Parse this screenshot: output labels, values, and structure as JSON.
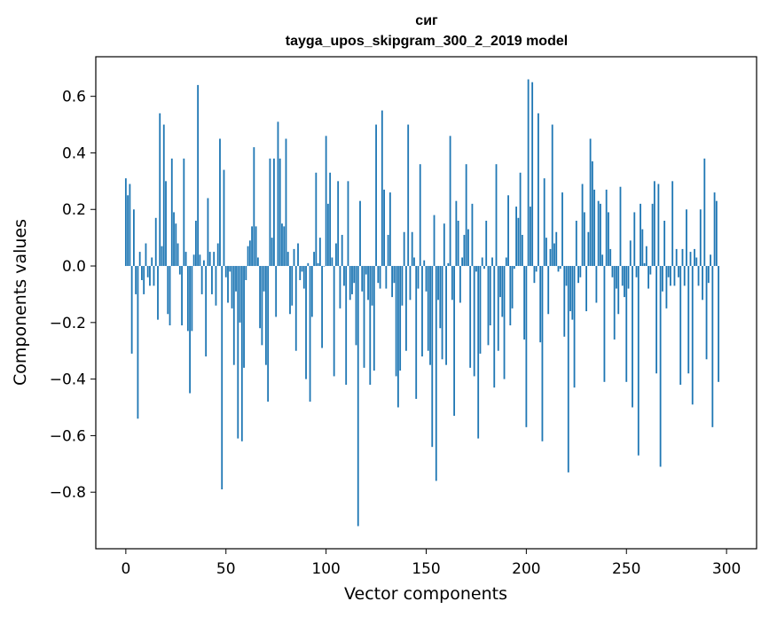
{
  "chart_data": {
    "type": "bar",
    "title_line1": "сиг",
    "title_line2": "tayga_upos_skipgram_300_2_2019 model",
    "xlabel": "Vector components",
    "ylabel": "Components values",
    "xlim": [
      -15,
      315
    ],
    "ylim": [
      -1.0,
      0.74
    ],
    "xticks": [
      0,
      50,
      100,
      150,
      200,
      250,
      300
    ],
    "yticks": [
      -0.8,
      -0.6,
      -0.4,
      -0.2,
      0.0,
      0.2,
      0.4,
      0.6
    ],
    "ytick_labels": [
      "−0.8",
      "−0.6",
      "−0.4",
      "−0.2",
      "0.0",
      "0.2",
      "0.4",
      "0.6"
    ],
    "bar_color": "#1f77b4",
    "values": [
      0.31,
      0.25,
      0.29,
      -0.31,
      0.2,
      -0.1,
      -0.54,
      0.05,
      -0.05,
      -0.1,
      0.08,
      -0.04,
      -0.07,
      0.03,
      -0.07,
      0.17,
      -0.19,
      0.54,
      0.07,
      0.5,
      0.3,
      -0.17,
      -0.21,
      0.38,
      0.19,
      0.15,
      0.08,
      -0.03,
      -0.21,
      0.38,
      0.05,
      -0.23,
      -0.45,
      -0.23,
      0.04,
      0.16,
      0.64,
      0.04,
      -0.1,
      0.02,
      -0.32,
      0.24,
      0.05,
      -0.1,
      0.05,
      -0.14,
      0.08,
      0.45,
      -0.79,
      0.34,
      -0.04,
      -0.13,
      -0.02,
      -0.15,
      -0.35,
      -0.09,
      -0.61,
      -0.2,
      -0.62,
      -0.36,
      -0.05,
      0.07,
      0.09,
      0.14,
      0.42,
      0.14,
      0.03,
      -0.22,
      -0.28,
      -0.09,
      -0.35,
      -0.48,
      0.38,
      0.1,
      0.38,
      -0.18,
      0.51,
      0.38,
      0.15,
      0.14,
      0.45,
      0.05,
      -0.17,
      -0.14,
      0.06,
      -0.3,
      0.08,
      -0.05,
      -0.02,
      -0.08,
      -0.4,
      0.01,
      -0.48,
      -0.18,
      0.05,
      0.33,
      0.01,
      0.1,
      -0.29,
      0.0,
      0.46,
      0.22,
      0.33,
      0.03,
      -0.39,
      0.08,
      0.3,
      -0.15,
      0.11,
      -0.07,
      -0.42,
      0.3,
      -0.12,
      -0.1,
      -0.06,
      -0.28,
      -0.92,
      0.23,
      -0.09,
      -0.36,
      -0.03,
      -0.12,
      -0.42,
      -0.14,
      -0.37,
      0.5,
      -0.06,
      -0.08,
      0.55,
      0.27,
      -0.08,
      0.11,
      0.26,
      -0.11,
      -0.06,
      -0.39,
      -0.5,
      -0.37,
      -0.14,
      0.12,
      -0.3,
      0.5,
      -0.12,
      0.12,
      0.03,
      -0.47,
      -0.08,
      0.36,
      -0.32,
      0.02,
      -0.09,
      -0.3,
      -0.35,
      -0.64,
      0.18,
      -0.76,
      -0.12,
      -0.22,
      -0.33,
      0.15,
      -0.35,
      0.01,
      0.46,
      -0.12,
      -0.53,
      0.23,
      0.16,
      -0.13,
      0.03,
      0.11,
      0.36,
      0.13,
      -0.36,
      0.22,
      -0.39,
      -0.02,
      -0.61,
      -0.31,
      0.03,
      -0.01,
      0.16,
      -0.28,
      -0.21,
      0.03,
      -0.43,
      0.36,
      -0.3,
      -0.11,
      -0.18,
      -0.4,
      0.03,
      0.25,
      -0.21,
      -0.15,
      -0.01,
      0.21,
      0.17,
      0.33,
      0.11,
      -0.26,
      -0.57,
      0.66,
      0.21,
      0.65,
      -0.06,
      -0.02,
      0.54,
      -0.27,
      -0.62,
      0.31,
      0.1,
      -0.17,
      0.06,
      0.5,
      0.08,
      0.12,
      -0.02,
      -0.01,
      0.26,
      -0.25,
      -0.07,
      -0.73,
      -0.16,
      -0.19,
      -0.43,
      0.16,
      -0.06,
      -0.04,
      0.29,
      0.19,
      -0.16,
      0.12,
      0.45,
      0.37,
      0.27,
      -0.13,
      0.23,
      0.22,
      0.04,
      -0.41,
      0.27,
      0.19,
      0.06,
      -0.04,
      -0.26,
      -0.08,
      -0.17,
      0.28,
      -0.07,
      -0.11,
      -0.41,
      -0.08,
      0.09,
      -0.5,
      0.19,
      -0.04,
      -0.67,
      0.22,
      0.13,
      0.01,
      0.07,
      -0.08,
      -0.03,
      0.22,
      0.3,
      -0.38,
      0.29,
      -0.71,
      -0.09,
      0.16,
      -0.15,
      -0.04,
      -0.07,
      0.3,
      -0.07,
      0.06,
      -0.04,
      -0.42,
      0.06,
      -0.07,
      0.2,
      -0.38,
      0.05,
      -0.49,
      0.06,
      0.03,
      -0.07,
      0.2,
      -0.12,
      0.38,
      -0.33,
      -0.06,
      0.04,
      -0.57,
      0.26,
      0.23,
      -0.41
    ]
  }
}
